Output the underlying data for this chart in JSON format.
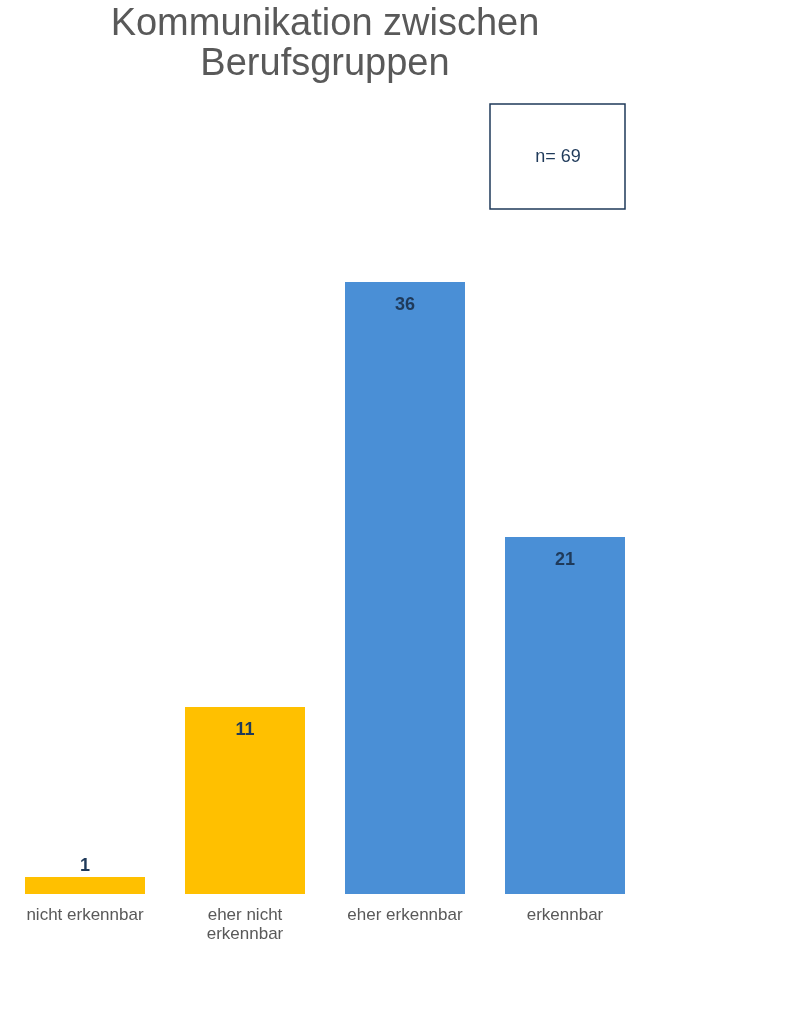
{
  "chart_data": {
    "type": "bar",
    "title": "Kommunikation zwischen Berufsgruppen",
    "categories": [
      "nicht erkennbar",
      "eher nicht erkennbar",
      "eher erkennbar",
      "erkennbar"
    ],
    "values": [
      1,
      11,
      36,
      21
    ],
    "colors": [
      "#ffc000",
      "#ffc000",
      "#4a8fd6",
      "#4a8fd6"
    ],
    "data_labels": true,
    "annotations": [
      "n= 69"
    ],
    "grid": false
  }
}
